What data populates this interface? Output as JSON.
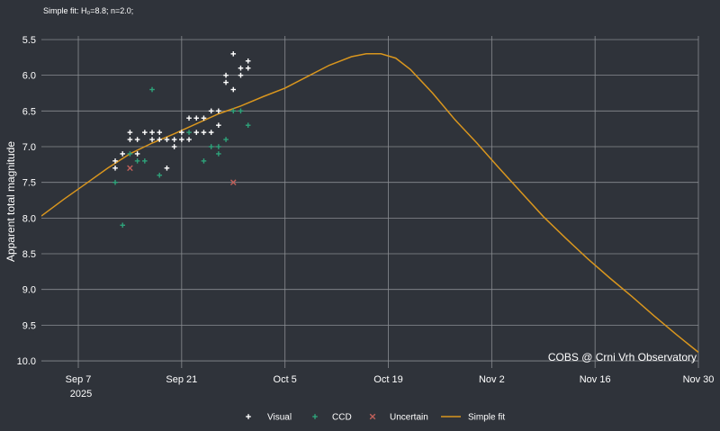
{
  "header": {
    "fit_text": "Simple fit: H₀=8.8; n=2.0;"
  },
  "watermark": "COBS @ Crni Vrh Observatory",
  "colors": {
    "background": "#2f333a",
    "grid": "#8a8d92",
    "visual": "#ffffff",
    "ccd": "#2ea37a",
    "uncertain": "#c0605a",
    "fit": "#d9961e"
  },
  "chart_data": {
    "type": "scatter",
    "x_axis": {
      "tick_labels": [
        "Sep 7",
        "Sep 21",
        "Oct 5",
        "Oct 19",
        "Nov 2",
        "Nov 16",
        "Nov 30"
      ],
      "tick_dates": [
        "2025-09-07",
        "2025-09-21",
        "2025-10-05",
        "2025-10-19",
        "2025-11-02",
        "2025-11-16",
        "2025-11-30"
      ],
      "year_label": "2025",
      "range": [
        "2025-09-02",
        "2025-11-30"
      ]
    },
    "y_axis": {
      "label": "Apparent total magnitude",
      "inverted": true,
      "range": [
        10.1,
        5.45
      ],
      "tick_values": [
        5.5,
        6.0,
        6.5,
        7.0,
        7.5,
        8.0,
        8.5,
        9.0,
        9.5,
        10.0
      ],
      "tick_labels": [
        "5.5",
        "6.0",
        "6.5",
        "7.0",
        "7.5",
        "8.0",
        "8.5",
        "9.0",
        "9.5",
        "10.0"
      ]
    },
    "grid": true,
    "legend_position": "bottom-center",
    "series": [
      {
        "name": "Visual",
        "marker": "plus",
        "points": [
          [
            "2025-09-12",
            7.3
          ],
          [
            "2025-09-12",
            7.2
          ],
          [
            "2025-09-13",
            7.1
          ],
          [
            "2025-09-14",
            6.8
          ],
          [
            "2025-09-14",
            6.9
          ],
          [
            "2025-09-15",
            6.9
          ],
          [
            "2025-09-15",
            7.1
          ],
          [
            "2025-09-16",
            6.8
          ],
          [
            "2025-09-17",
            6.8
          ],
          [
            "2025-09-17",
            6.9
          ],
          [
            "2025-09-18",
            6.8
          ],
          [
            "2025-09-18",
            6.9
          ],
          [
            "2025-09-19",
            6.9
          ],
          [
            "2025-09-19",
            7.3
          ],
          [
            "2025-09-20",
            6.9
          ],
          [
            "2025-09-20",
            7.0
          ],
          [
            "2025-09-21",
            6.8
          ],
          [
            "2025-09-21",
            6.9
          ],
          [
            "2025-09-22",
            6.6
          ],
          [
            "2025-09-22",
            6.9
          ],
          [
            "2025-09-23",
            6.6
          ],
          [
            "2025-09-23",
            6.8
          ],
          [
            "2025-09-24",
            6.6
          ],
          [
            "2025-09-24",
            6.8
          ],
          [
            "2025-09-25",
            6.5
          ],
          [
            "2025-09-25",
            6.8
          ],
          [
            "2025-09-26",
            6.5
          ],
          [
            "2025-09-26",
            6.7
          ],
          [
            "2025-09-27",
            6.0
          ],
          [
            "2025-09-27",
            6.1
          ],
          [
            "2025-09-28",
            5.7
          ],
          [
            "2025-09-28",
            6.2
          ],
          [
            "2025-09-29",
            5.9
          ],
          [
            "2025-09-29",
            6.0
          ],
          [
            "2025-09-30",
            5.8
          ],
          [
            "2025-09-30",
            5.9
          ]
        ]
      },
      {
        "name": "CCD",
        "marker": "plus",
        "points": [
          [
            "2025-09-12",
            7.5
          ],
          [
            "2025-09-13",
            8.1
          ],
          [
            "2025-09-14",
            7.1
          ],
          [
            "2025-09-15",
            7.2
          ],
          [
            "2025-09-16",
            7.2
          ],
          [
            "2025-09-17",
            6.2
          ],
          [
            "2025-09-18",
            7.4
          ],
          [
            "2025-09-22",
            6.8
          ],
          [
            "2025-09-24",
            7.2
          ],
          [
            "2025-09-25",
            7.0
          ],
          [
            "2025-09-26",
            7.1
          ],
          [
            "2025-09-26",
            7.0
          ],
          [
            "2025-09-27",
            6.9
          ],
          [
            "2025-09-28",
            6.5
          ],
          [
            "2025-09-29",
            6.5
          ],
          [
            "2025-09-30",
            6.7
          ]
        ]
      },
      {
        "name": "Uncertain",
        "marker": "x",
        "points": [
          [
            "2025-09-14",
            7.3
          ],
          [
            "2025-09-28",
            7.5
          ]
        ]
      },
      {
        "name": "Simple fit",
        "marker": "line",
        "points": [
          [
            "2025-09-02",
            7.97
          ],
          [
            "2025-09-05",
            7.74
          ],
          [
            "2025-09-08",
            7.52
          ],
          [
            "2025-09-11",
            7.3
          ],
          [
            "2025-09-14",
            7.1
          ],
          [
            "2025-09-17",
            6.95
          ],
          [
            "2025-09-20",
            6.82
          ],
          [
            "2025-09-23",
            6.68
          ],
          [
            "2025-09-26",
            6.54
          ],
          [
            "2025-09-29",
            6.43
          ],
          [
            "2025-10-02",
            6.3
          ],
          [
            "2025-10-05",
            6.18
          ],
          [
            "2025-10-08",
            6.02
          ],
          [
            "2025-10-11",
            5.86
          ],
          [
            "2025-10-14",
            5.74
          ],
          [
            "2025-10-16",
            5.7
          ],
          [
            "2025-10-18",
            5.7
          ],
          [
            "2025-10-20",
            5.76
          ],
          [
            "2025-10-22",
            5.92
          ],
          [
            "2025-10-25",
            6.25
          ],
          [
            "2025-10-28",
            6.62
          ],
          [
            "2025-10-31",
            6.95
          ],
          [
            "2025-11-03",
            7.3
          ],
          [
            "2025-11-06",
            7.64
          ],
          [
            "2025-11-09",
            7.98
          ],
          [
            "2025-11-12",
            8.28
          ],
          [
            "2025-11-15",
            8.57
          ],
          [
            "2025-11-18",
            8.84
          ],
          [
            "2025-11-21",
            9.1
          ],
          [
            "2025-11-24",
            9.37
          ],
          [
            "2025-11-27",
            9.63
          ],
          [
            "2025-11-30",
            9.88
          ]
        ]
      }
    ]
  }
}
